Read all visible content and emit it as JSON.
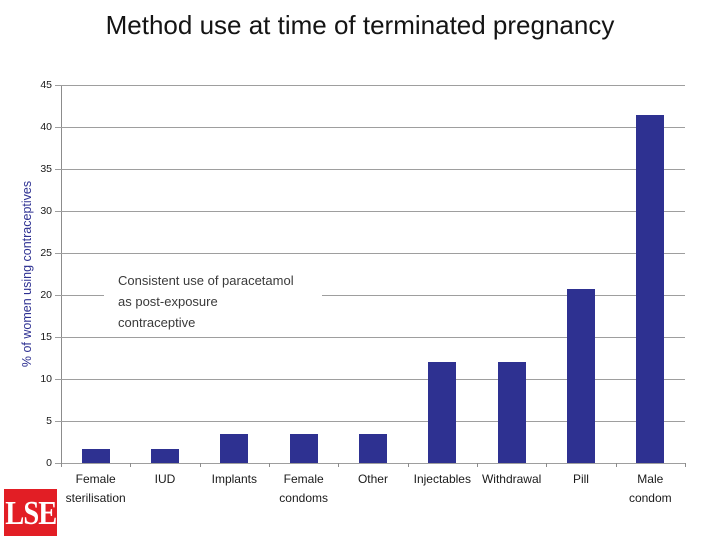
{
  "slide": {
    "title": "Method use at time of terminated pregnancy"
  },
  "logo": {
    "text": "LSE",
    "background_color": "#E21E25",
    "text_color": "#FFFFFF"
  },
  "annotation": {
    "text": "Consistent use of paracetamol\nas post-exposure\ncontraceptive"
  },
  "chart_data": {
    "type": "bar",
    "title": "Method use at time of terminated pregnancy",
    "categories": [
      "Female sterilisation",
      "IUD",
      "Implants",
      "Female condoms",
      "Other",
      "Injectables",
      "Withdrawal",
      "Pill",
      "Male condom"
    ],
    "values": [
      1.7,
      1.7,
      3.4,
      3.4,
      3.4,
      12,
      12,
      20.7,
      41.4
    ],
    "xlabel": "",
    "ylabel": "% of women using contraceptives",
    "ylim": [
      0,
      45
    ],
    "ytick_step": 5,
    "grid": true,
    "legend": false,
    "bar_color": "#2E3191",
    "gridline_color": "#9E9E9E",
    "annotation": "Consistent use of paracetamol as post-exposure contraceptive"
  }
}
